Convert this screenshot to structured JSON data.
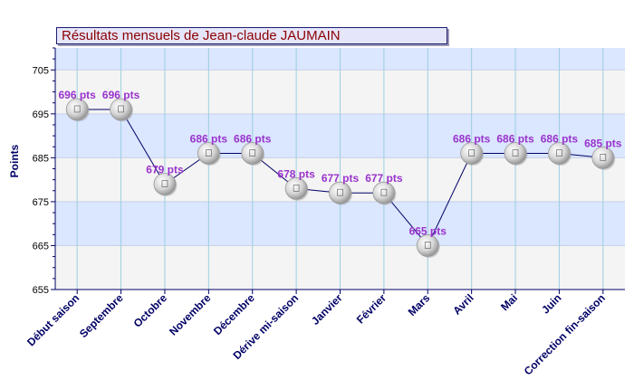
{
  "chart_data": {
    "type": "line",
    "title": "Résultats mensuels de  Jean-claude JAUMAIN",
    "ylabel": "Points",
    "xlabel": "",
    "ylim": [
      655,
      710
    ],
    "yticks": [
      655,
      665,
      675,
      685,
      695,
      705
    ],
    "categories": [
      "Début saison",
      "Septembre",
      "Octobre",
      "Novembre",
      "Décembre",
      "Dérive mi-saison",
      "Janvier",
      "Février",
      "Mars",
      "Avril",
      "Mai",
      "Juin",
      "Correction fin-saison"
    ],
    "values": [
      696,
      696,
      679,
      686,
      686,
      678,
      677,
      677,
      665,
      686,
      686,
      686,
      685
    ],
    "labels": [
      "696 pts",
      "696 pts",
      "679 pts",
      "686 pts",
      "686 pts",
      "678 pts",
      "677 pts",
      "677 pts",
      "665 pts",
      "686 pts",
      "686 pts",
      "686 pts",
      "685 pts"
    ],
    "colors": {
      "label": "#9933cc",
      "axis": "#000066",
      "line": "#000066",
      "band": "#dbe6ff",
      "plot_bg": "#f4f4f4",
      "grid": "#9ccfe0",
      "title": "#8b0000"
    },
    "grid": true
  }
}
